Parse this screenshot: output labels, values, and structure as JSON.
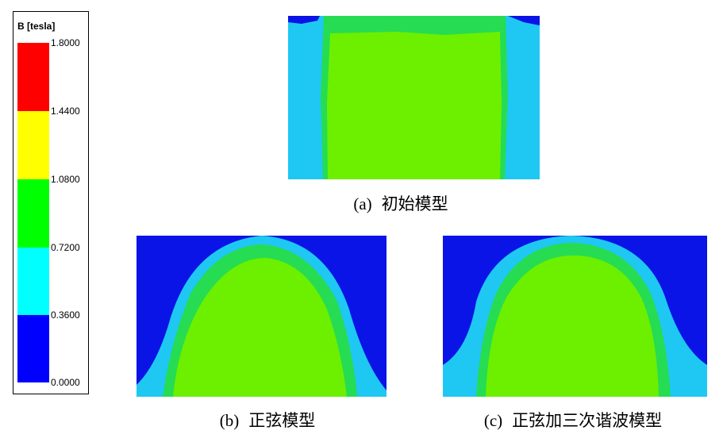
{
  "legend": {
    "title": "B [tesla]",
    "labels": [
      "1.8000",
      "1.4400",
      "1.0800",
      "0.7200",
      "0.3600",
      "0.0000"
    ]
  },
  "panels": [
    {
      "label": "(a)",
      "caption": "初始模型"
    },
    {
      "label": "(b)",
      "caption": "正弦模型"
    },
    {
      "label": "(c)",
      "caption": "正弦加三次谐波模型"
    }
  ]
}
